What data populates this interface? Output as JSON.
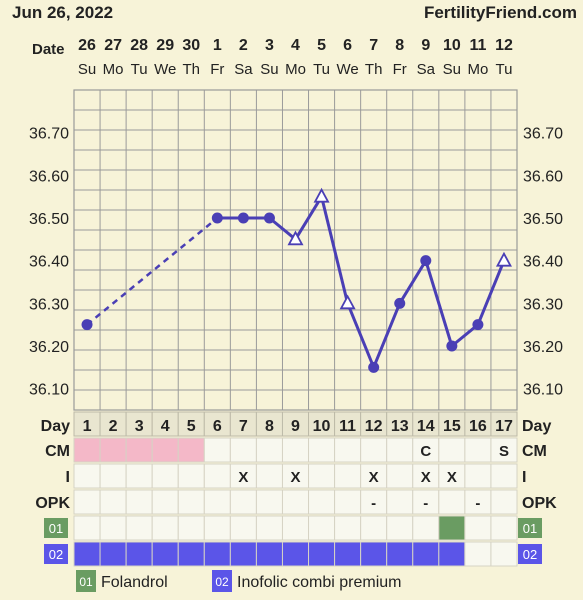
{
  "header": {
    "date": "Jun 26, 2022",
    "site": "FertilityFriend.com"
  },
  "labels": {
    "date": "Date",
    "day": "Day",
    "cm": "CM",
    "i": "I",
    "opk": "OPK"
  },
  "dates": [
    {
      "d": "26",
      "w": "Su"
    },
    {
      "d": "27",
      "w": "Mo"
    },
    {
      "d": "28",
      "w": "Tu"
    },
    {
      "d": "29",
      "w": "We"
    },
    {
      "d": "30",
      "w": "Th"
    },
    {
      "d": "1",
      "w": "Fr"
    },
    {
      "d": "2",
      "w": "Sa"
    },
    {
      "d": "3",
      "w": "Su"
    },
    {
      "d": "4",
      "w": "Mo"
    },
    {
      "d": "5",
      "w": "Tu"
    },
    {
      "d": "6",
      "w": "We"
    },
    {
      "d": "7",
      "w": "Th"
    },
    {
      "d": "8",
      "w": "Fr"
    },
    {
      "d": "9",
      "w": "Sa"
    },
    {
      "d": "10",
      "w": "Su"
    },
    {
      "d": "11",
      "w": "Mo"
    },
    {
      "d": "12",
      "w": "Tu"
    }
  ],
  "cycle_days": [
    "1",
    "2",
    "3",
    "4",
    "5",
    "6",
    "7",
    "8",
    "9",
    "10",
    "11",
    "12",
    "13",
    "14",
    "15",
    "16",
    "17"
  ],
  "cm": [
    "pink",
    "pink",
    "pink",
    "pink",
    "pink",
    "",
    "",
    "",
    "",
    "",
    "",
    "",
    "",
    "C",
    "",
    "",
    "S"
  ],
  "intercourse": [
    "",
    "",
    "",
    "",
    "",
    "",
    "X",
    "",
    "X",
    "",
    "",
    "X",
    "",
    "X",
    "X",
    "",
    ""
  ],
  "opk": [
    "",
    "",
    "",
    "",
    "",
    "",
    "",
    "",
    "",
    "",
    "",
    "-",
    "",
    "-",
    "",
    "-",
    ""
  ],
  "meds": [
    {
      "code": "01",
      "name": "Folandrol",
      "color": "#6a9c62",
      "days": [
        false,
        false,
        false,
        false,
        false,
        false,
        false,
        false,
        false,
        false,
        false,
        false,
        false,
        false,
        true,
        false,
        false
      ]
    },
    {
      "code": "02",
      "name": "Inofolic combi premium",
      "color": "#5b55e8",
      "days": [
        true,
        true,
        true,
        true,
        true,
        true,
        true,
        true,
        true,
        true,
        true,
        true,
        true,
        true,
        true,
        false,
        false
      ]
    }
  ],
  "colors": {
    "line": "#4a3fb5",
    "grid": "#9a9a9a",
    "pink": "#f4b8c8",
    "cell": "#f8f8ef"
  },
  "chart_data": {
    "type": "line",
    "ylim": [
      36.05,
      36.8
    ],
    "yticks": [
      "36.70",
      "36.60",
      "36.50",
      "36.40",
      "36.30",
      "36.20",
      "36.10"
    ],
    "points": [
      {
        "day": 1,
        "value": 36.25,
        "marker": "circle"
      },
      {
        "day": 6,
        "value": 36.5,
        "marker": "circle"
      },
      {
        "day": 7,
        "value": 36.5,
        "marker": "circle"
      },
      {
        "day": 8,
        "value": 36.5,
        "marker": "circle"
      },
      {
        "day": 9,
        "value": 36.45,
        "marker": "triangle"
      },
      {
        "day": 10,
        "value": 36.55,
        "marker": "triangle"
      },
      {
        "day": 11,
        "value": 36.3,
        "marker": "triangle"
      },
      {
        "day": 12,
        "value": 36.15,
        "marker": "circle"
      },
      {
        "day": 13,
        "value": 36.3,
        "marker": "circle"
      },
      {
        "day": 14,
        "value": 36.4,
        "marker": "circle"
      },
      {
        "day": 15,
        "value": 36.2,
        "marker": "circle"
      },
      {
        "day": 16,
        "value": 36.25,
        "marker": "circle"
      },
      {
        "day": 17,
        "value": 36.4,
        "marker": "triangle"
      }
    ],
    "dashed_segments": [
      [
        1,
        6
      ]
    ]
  }
}
